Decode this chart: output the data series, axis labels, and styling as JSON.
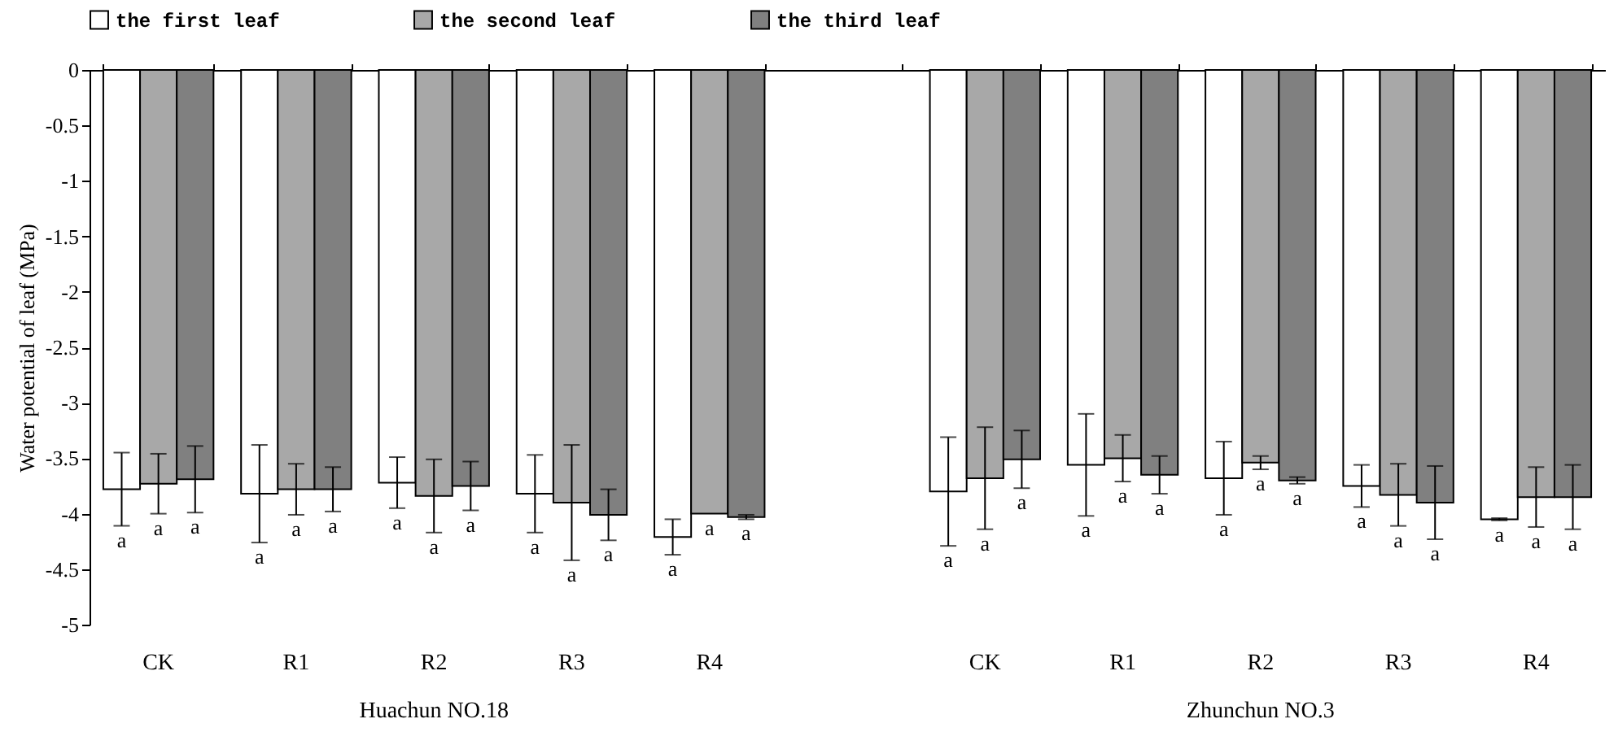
{
  "chart_data": {
    "type": "bar",
    "categories": [
      "CK",
      "R1",
      "R2",
      "R3",
      "R4",
      null,
      "CK",
      "R1",
      "R2",
      "R3",
      "R4"
    ],
    "ylabel": "Water potential of leaf (MPa)",
    "ylim": [
      -5,
      0
    ],
    "yticks": [
      0,
      -0.5,
      -1,
      -1.5,
      -2,
      -2.5,
      -3,
      -3.5,
      -4,
      -4.5,
      -5
    ],
    "legend": "top",
    "series": [
      {
        "name": "the first leaf",
        "color": "#ffffff",
        "values": [
          -3.78,
          -3.82,
          -3.72,
          -3.82,
          -4.21,
          null,
          -3.8,
          -3.56,
          -3.68,
          -3.75,
          -4.05
        ],
        "errors": [
          0.33,
          0.44,
          0.23,
          0.35,
          0.16,
          null,
          0.49,
          0.46,
          0.33,
          0.19,
          0.01
        ],
        "value_labels": [
          "a",
          "a",
          "a",
          "a",
          "a",
          null,
          "a",
          "a",
          "a",
          "a",
          "a"
        ]
      },
      {
        "name": "the second leaf",
        "color": "#a8a8a8",
        "values": [
          -3.73,
          -3.78,
          -3.84,
          -3.9,
          -4.0,
          null,
          -3.68,
          -3.5,
          -3.54,
          -3.83,
          -3.85
        ],
        "errors": [
          0.27,
          0.23,
          0.33,
          0.52,
          null,
          null,
          0.46,
          0.21,
          0.06,
          0.28,
          0.27
        ],
        "value_labels": [
          "a",
          "a",
          "a",
          "a",
          "a",
          null,
          "a",
          "a",
          "a",
          "a",
          "a"
        ]
      },
      {
        "name": "the third leaf",
        "color": "#808080",
        "values": [
          -3.69,
          -3.78,
          -3.75,
          -4.01,
          -4.03,
          null,
          -3.51,
          -3.65,
          -3.7,
          -3.9,
          -3.85
        ],
        "errors": [
          0.3,
          0.2,
          0.22,
          0.23,
          0.02,
          null,
          0.26,
          0.17,
          0.03,
          0.33,
          0.29
        ],
        "value_labels": [
          "a",
          "a",
          "a",
          "a",
          "a",
          null,
          "a",
          "a",
          "a",
          "a",
          "a"
        ]
      }
    ],
    "annotations": [
      "Huachun NO.18",
      "Zhunchun NO.3"
    ]
  }
}
